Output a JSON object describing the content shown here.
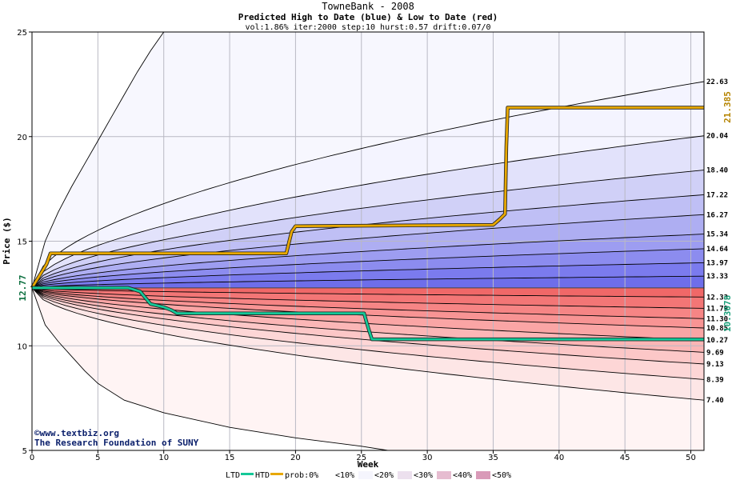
{
  "chart_data": {
    "type": "area",
    "title": "TowneBank - 2008",
    "subtitle": "Predicted High to Date (blue) &  Low to Date (red)",
    "params": "vol:1.86% iter:2000 step:10 hurst:0.57 drift:0.07/0",
    "xlabel": "Week",
    "ylabel": "Price ($)",
    "xlim": [
      0,
      51
    ],
    "ylim": [
      5,
      25
    ],
    "x_ticks": [
      0,
      5,
      10,
      15,
      20,
      25,
      30,
      35,
      40,
      45,
      50
    ],
    "y_ticks": [
      5,
      10,
      15,
      20,
      25
    ],
    "start_price": 12.77,
    "start_label": "12.77",
    "high_levels": [
      22.63,
      20.04,
      18.4,
      17.22,
      16.27,
      15.34,
      14.64,
      13.97,
      13.33
    ],
    "high_level_labels": [
      "22.63",
      "20.04",
      "18.40",
      "17.22",
      "16.27",
      "15.34",
      "14.64",
      "13.97",
      "13.33"
    ],
    "low_levels": [
      12.33,
      11.79,
      11.3,
      10.85,
      10.27,
      9.69,
      9.13,
      8.39,
      7.4
    ],
    "low_level_labels": [
      "12.33",
      "11.79",
      "11.30",
      "10.85",
      "10.27",
      "9.69",
      "9.13",
      "8.39",
      "7.40"
    ],
    "htd_final": 21.385,
    "htd_final_label": "21.385",
    "ltd_final": 10.3078,
    "ltd_final_label": "10.3078",
    "series": [
      {
        "name": "HTD",
        "x": [
          0,
          1.1,
          1.4,
          19.3,
          19.7,
          20,
          35,
          35.5,
          35.9,
          36,
          36.1,
          51
        ],
        "y": [
          12.77,
          13.9,
          14.42,
          14.42,
          15.45,
          15.72,
          15.78,
          16.05,
          16.3,
          19.5,
          21.385,
          21.385
        ]
      },
      {
        "name": "LTD",
        "x": [
          0,
          7.3,
          8.2,
          8.6,
          9,
          10,
          10.6,
          11,
          25.2,
          25.4,
          25.6,
          25.8,
          51
        ],
        "y": [
          12.77,
          12.77,
          12.6,
          12.3,
          12.0,
          11.85,
          11.7,
          11.55,
          11.55,
          11.1,
          10.7,
          10.31,
          10.3078
        ]
      }
    ],
    "extreme_envelopes": {
      "upper": {
        "x": [
          0,
          1,
          2,
          3,
          4,
          5,
          6,
          7,
          8,
          9,
          10
        ],
        "y": [
          12.77,
          15.0,
          16.4,
          17.6,
          18.7,
          19.8,
          20.9,
          22.0,
          23.1,
          24.1,
          25.0
        ]
      },
      "lower": {
        "x": [
          0,
          1,
          2,
          3,
          4,
          5,
          7,
          10,
          15,
          20,
          25,
          27
        ],
        "y": [
          12.77,
          11.0,
          10.2,
          9.5,
          8.8,
          8.2,
          7.4,
          6.8,
          6.1,
          5.6,
          5.2,
          5.0
        ]
      }
    },
    "legend": {
      "position": "bottom",
      "items": [
        "LTD",
        "HTD",
        "prob:0%",
        "<10%",
        "<20%",
        "<30%",
        "<40%",
        "<50%"
      ]
    },
    "grid": true
  },
  "credits": {
    "line1": "©www.textbiz.org",
    "line2": "The Research Foundation of SUNY"
  },
  "colors": {
    "htd": "#e8a800",
    "ltd": "#14c898",
    "blue_bands": [
      "#f4f4ff",
      "#e2e2fb",
      "#d0d0f7",
      "#bfbff5",
      "#aeaef2",
      "#9d9df1",
      "#8c8cef",
      "#7b7bee",
      "#6e6eea"
    ],
    "red_bands": [
      "#fde6e6",
      "#fdd6d6",
      "#fcc7c7",
      "#fbb6b6",
      "#faa5a5",
      "#f89494",
      "#f68585",
      "#f37676",
      "#f06868"
    ],
    "pale_upper": "#f7f7fe",
    "pale_lower": "#fff4f4"
  }
}
